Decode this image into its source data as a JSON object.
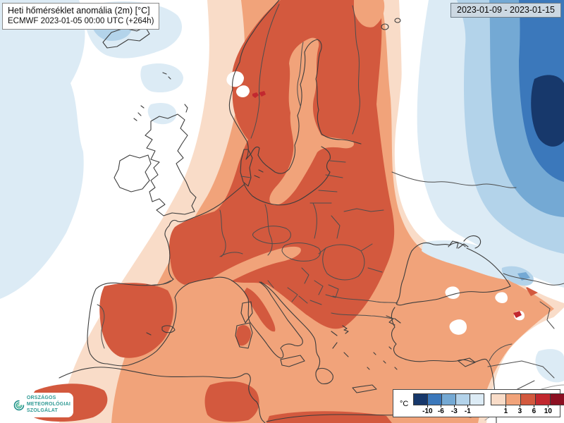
{
  "header": {
    "title_line1": "Heti hőmérséklet anomália (2m) [°C]",
    "title_line2": "ECMWF 2023-01-05 00:00 UTC (+264h)",
    "valid_range": "2023-01-09 - 2023-01-15"
  },
  "logo": {
    "org_line1": "ORSZÁGOS",
    "org_line2": "METEOROLÓGIAI",
    "org_line3": "SZOLGÁLAT"
  },
  "legend": {
    "unit_label": "°C",
    "negative": {
      "color_keys": [
        "neg4",
        "neg3",
        "neg2",
        "neg1",
        "neg0"
      ],
      "tick_labels": [
        "-10",
        "-6",
        "-3",
        "-1"
      ]
    },
    "positive": {
      "color_keys": [
        "pos0",
        "pos1",
        "pos2",
        "pos3",
        "pos4"
      ],
      "tick_labels": [
        "1",
        "3",
        "6",
        "10"
      ]
    }
  },
  "palette": {
    "neg4": "#17386b",
    "neg3": "#3b78bb",
    "neg2": "#74a9d4",
    "neg1": "#b3d3ea",
    "neg0": "#dcebf5",
    "pos0": "#f9dcc8",
    "pos1": "#f1a37a",
    "pos2": "#d3593e",
    "pos3": "#c2282f",
    "pos4": "#8c1022",
    "coastline": "#3d3d3d",
    "border": "#4d4d4d"
  },
  "map": {
    "area": "Europe",
    "kind": "filled-contour weekly 2m temperature anomaly",
    "anomaly_regions": [
      {
        "color_key": "pos2",
        "meaning": "+3…+6 °C",
        "where": "Scandinavia, Central & Eastern Europe, Balkans, France, inland Iberia"
      },
      {
        "color_key": "pos1",
        "meaning": "+1…+3 °C",
        "where": "Mediterranean, Baltic Sea, Turkey, North Africa"
      },
      {
        "color_key": "pos0",
        "meaning": "0…+1 °C",
        "where": "Atlantic fringe, Middle East margins"
      },
      {
        "color_key": "neg1",
        "meaning": "-1…-3 °C",
        "where": "North-eastern Europe, Iceland"
      },
      {
        "color_key": "neg3",
        "meaning": "-6…-10 °C",
        "where": "North-west Russia"
      },
      {
        "color_key": "neg4",
        "meaning": "below -10 °C",
        "where": "far north-east corner"
      }
    ]
  }
}
